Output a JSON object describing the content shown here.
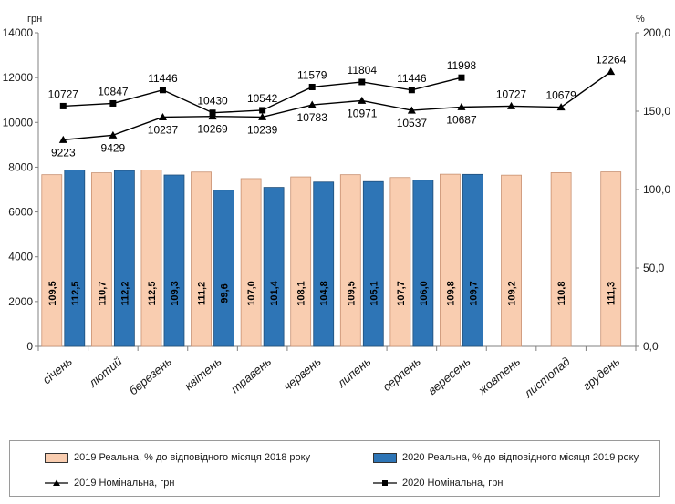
{
  "chart_data": {
    "type": "bar+line",
    "left_axis_label": "грн",
    "right_axis_label": "%",
    "left_ylim": [
      0,
      14000
    ],
    "left_ticks": [
      "0",
      "2000",
      "4000",
      "6000",
      "8000",
      "10000",
      "12000",
      "14000"
    ],
    "right_ylim": [
      0,
      200
    ],
    "right_ticks": [
      "0,0",
      "50,0",
      "100,0",
      "150,0",
      "200,0"
    ],
    "categories": [
      "січень",
      "лютий",
      "березень",
      "квітень",
      "травень",
      "червень",
      "липень",
      "серпень",
      "вересень",
      "жовтень",
      "листопад",
      "грудень"
    ],
    "bar_series": [
      {
        "name": "2019 Реальна, % до відповідного місяця 2018 року",
        "color": "#f9cdb0",
        "border": "#c89070",
        "values": [
          109.5,
          110.7,
          112.5,
          111.2,
          107.0,
          108.1,
          109.5,
          107.7,
          109.8,
          109.2,
          110.8,
          111.3
        ],
        "labels": [
          "109,5",
          "110,7",
          "112,5",
          "111,2",
          "107,0",
          "108,1",
          "109,5",
          "107,7",
          "109,8",
          "109,2",
          "110,8",
          "111,3"
        ]
      },
      {
        "name": "2020 Реальна, % до відповідного місяця 2019 року",
        "color": "#2e75b6",
        "border": "#1f4e79",
        "values": [
          112.5,
          112.2,
          109.3,
          99.6,
          101.4,
          104.8,
          105.1,
          106.0,
          109.7,
          null,
          null,
          null
        ],
        "labels": [
          "112,5",
          "112,2",
          "109,3",
          "99,6",
          "101,4",
          "104,8",
          "105,1",
          "106,0",
          "109,7",
          "",
          "",
          ""
        ]
      }
    ],
    "line_series": [
      {
        "name": "2019 Номінальна, грн",
        "marker": "triangle",
        "values": [
          9223,
          9429,
          10237,
          10269,
          10239,
          10783,
          10971,
          10537,
          10687,
          10727,
          10679,
          12264
        ],
        "labels": [
          "9223",
          "9429",
          "10237",
          "10269",
          "10239",
          "10783",
          "10971",
          "10537",
          "10687",
          "10727",
          "10679",
          "12264"
        ]
      },
      {
        "name": "2020 Номінальна, грн",
        "marker": "square",
        "values": [
          10727,
          10847,
          11446,
          10430,
          10542,
          11579,
          11804,
          11446,
          11998,
          null,
          null,
          null
        ],
        "labels": [
          "10727",
          "10847",
          "11446",
          "10430",
          "10542",
          "11579",
          "11804",
          "11446",
          "11998",
          "",
          "",
          ""
        ]
      }
    ]
  },
  "legend": {
    "bar2019": "2019 Реальна, % до відповідного місяця 2018 року",
    "bar2020": "2020 Реальна, % до відповідного місяця 2019 року",
    "line2019": "2019 Номінальна, грн",
    "line2020": "2020 Номінальна, грн"
  }
}
